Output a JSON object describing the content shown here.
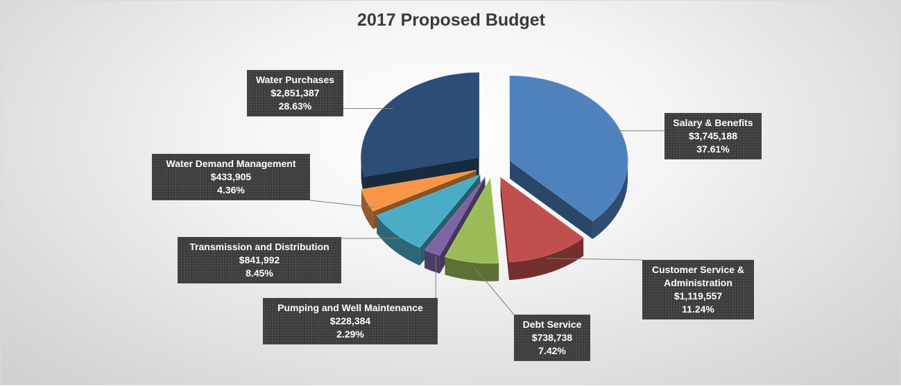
{
  "chart_data": {
    "type": "pie",
    "title": "2017 Proposed Budget",
    "exploded": true,
    "three_d": true,
    "slices": [
      {
        "name": "Salary & Benefits",
        "value": "$3,745,188",
        "amount": 3745188,
        "percent": 37.61,
        "percent_label": "37.61%",
        "color": "#4f81bd"
      },
      {
        "name": "Customer Service & Administration",
        "value": "$1,119,557",
        "amount": 1119557,
        "percent": 11.24,
        "percent_label": "11.24%",
        "color": "#c0504d"
      },
      {
        "name": "Debt Service",
        "value": "$738,738",
        "amount": 738738,
        "percent": 7.42,
        "percent_label": "7.42%",
        "color": "#9bbb59"
      },
      {
        "name": "Pumping and Well Maintenance",
        "value": "$228,384",
        "amount": 228384,
        "percent": 2.29,
        "percent_label": "2.29%",
        "color": "#8064a2"
      },
      {
        "name": "Transmission and Distribution",
        "value": "$841,992",
        "amount": 841992,
        "percent": 8.45,
        "percent_label": "8.45%",
        "color": "#4bacc6"
      },
      {
        "name": "Water Demand Management",
        "value": "$433,905",
        "amount": 433905,
        "percent": 4.36,
        "percent_label": "4.36%",
        "color": "#f79646"
      },
      {
        "name": "Water Purchases",
        "value": "$2,851,387",
        "amount": 2851387,
        "percent": 28.63,
        "percent_label": "28.63%",
        "color": "#2c4d75"
      }
    ]
  }
}
